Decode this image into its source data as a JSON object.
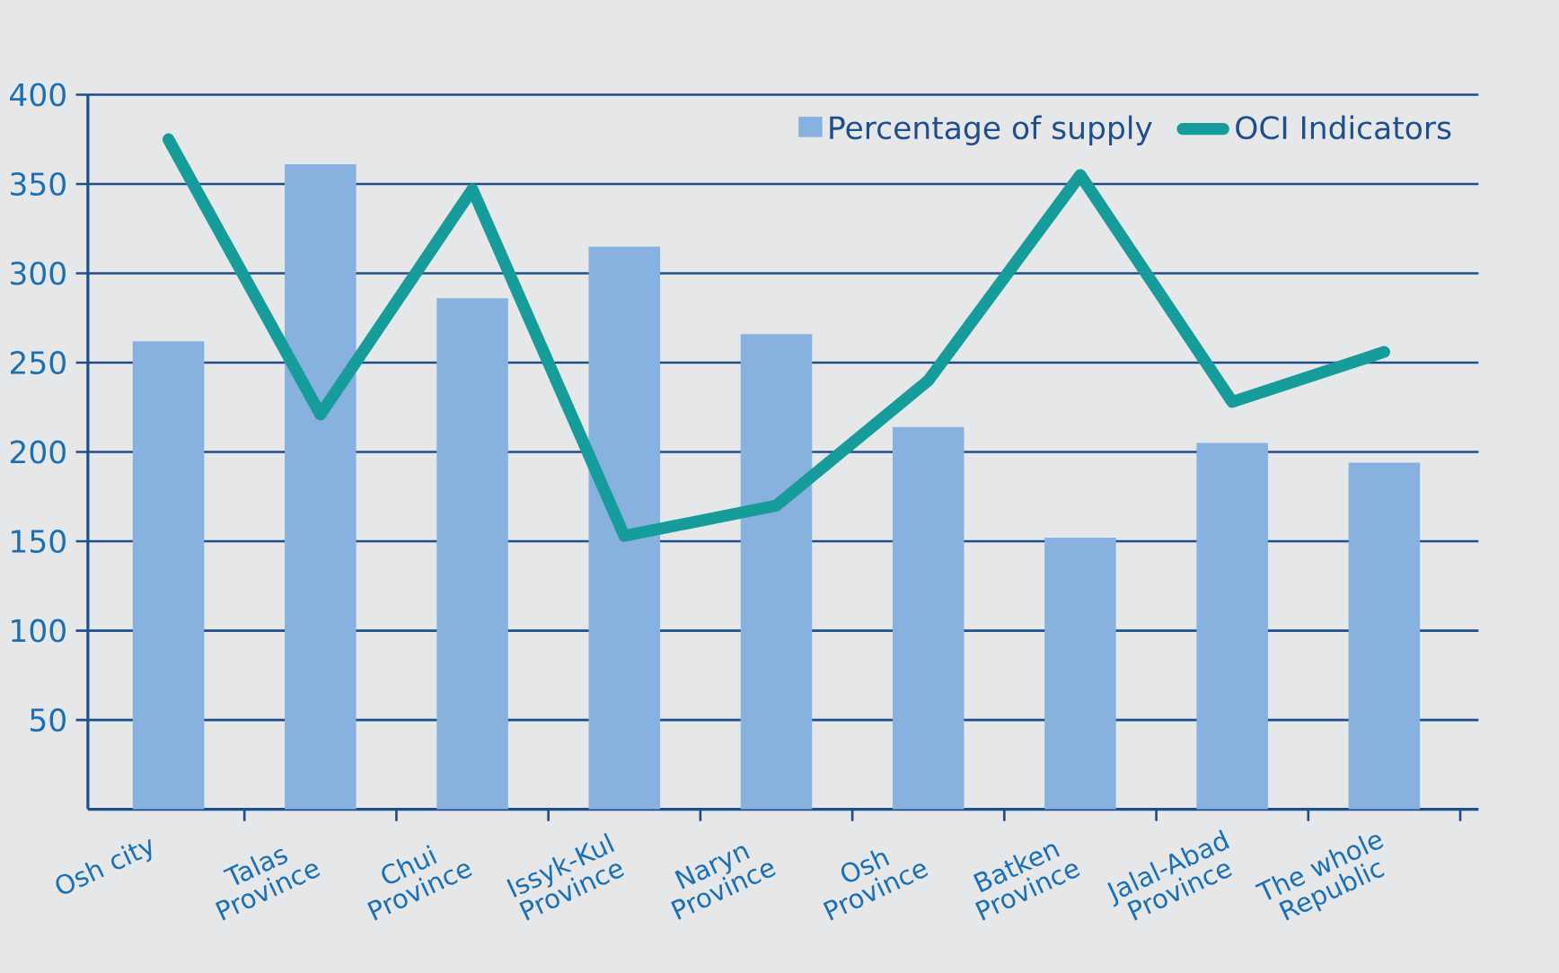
{
  "chart_data": {
    "type": "bar",
    "categories": [
      "Osh city",
      "Talas Province",
      "Chui Province",
      "Issyk-Kul Province",
      "Naryn Province",
      "Osh Province",
      "Batken Province",
      "Jalal-Abad Province",
      "The whole Republic"
    ],
    "series": [
      {
        "name": "Percentage of supply",
        "color": "#87b1df",
        "values": [
          262,
          361,
          286,
          315,
          266,
          214,
          152,
          205,
          194
        ]
      },
      {
        "name": "OCI Indicators",
        "type": "line",
        "color": "#169c9a",
        "values": [
          375,
          221,
          347,
          153,
          170,
          240,
          355,
          228,
          256
        ]
      }
    ],
    "ylim": [
      0,
      400
    ],
    "yticks": [
      50,
      100,
      150,
      200,
      250,
      300,
      350,
      400
    ],
    "grid": "y",
    "legend": "top right",
    "marker": "none"
  }
}
